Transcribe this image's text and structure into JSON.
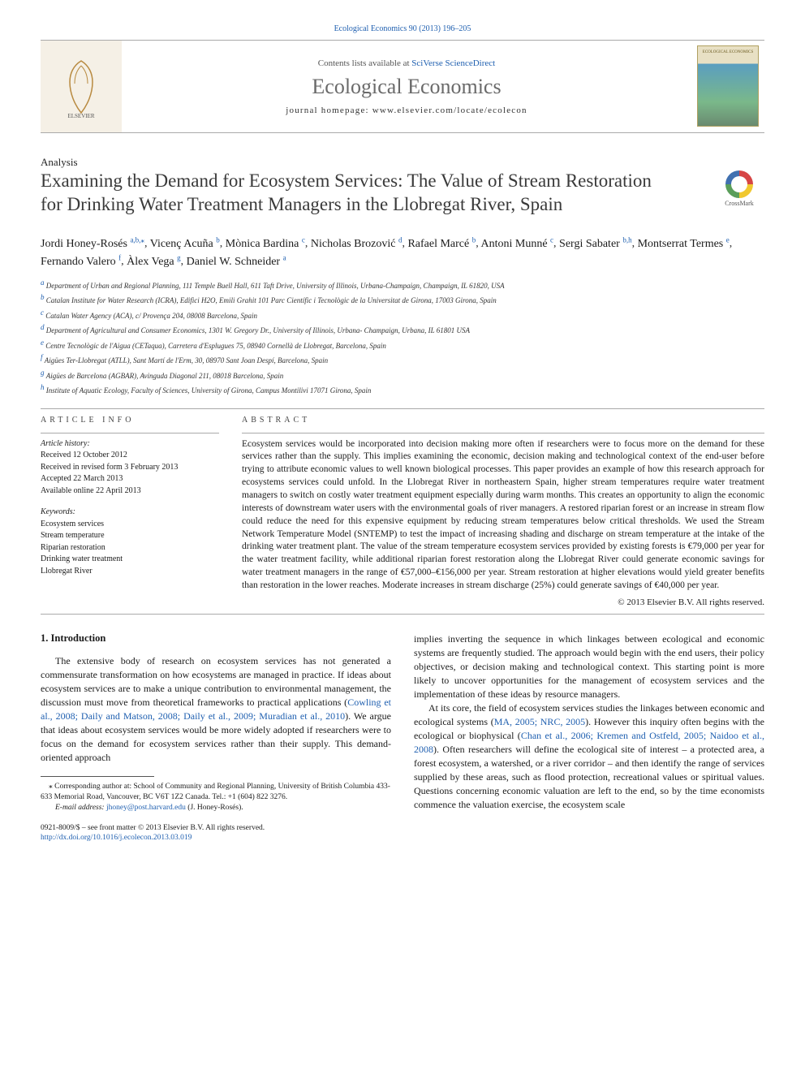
{
  "header": {
    "citation": "Ecological Economics 90 (2013) 196–205",
    "contents_line": "Contents lists available at ",
    "contents_link": "SciVerse ScienceDirect",
    "journal_title": "Ecological Economics",
    "homepage_line": "journal homepage: www.elsevier.com/locate/ecolecon"
  },
  "article_type": "Analysis",
  "crossmark_label": "CrossMark",
  "title": "Examining the Demand for Ecosystem Services: The Value of Stream Restoration for Drinking Water Treatment Managers in the Llobregat River, Spain",
  "authors": [
    {
      "name": "Jordi Honey-Rosés",
      "aff": "a,b,",
      "star": true
    },
    {
      "name": "Vicenç Acuña",
      "aff": "b"
    },
    {
      "name": "Mònica Bardina",
      "aff": "c"
    },
    {
      "name": "Nicholas Brozović",
      "aff": "d"
    },
    {
      "name": "Rafael Marcé",
      "aff": "b"
    },
    {
      "name": "Antoni Munné",
      "aff": "c"
    },
    {
      "name": "Sergi Sabater",
      "aff": "b,h"
    },
    {
      "name": "Montserrat Termes",
      "aff": "e"
    },
    {
      "name": "Fernando Valero",
      "aff": "f"
    },
    {
      "name": "Àlex Vega",
      "aff": "g"
    },
    {
      "name": "Daniel W. Schneider",
      "aff": "a"
    }
  ],
  "affiliations": [
    {
      "k": "a",
      "t": "Department of Urban and Regional Planning, 111 Temple Buell Hall, 611 Taft Drive, University of Illinois, Urbana-Champaign, Champaign, IL 61820, USA"
    },
    {
      "k": "b",
      "t": "Catalan Institute for Water Research (ICRA), Edifici H2O, Emili Grahit 101 Parc Científic i Tecnològic de la Universitat de Girona, 17003 Girona, Spain"
    },
    {
      "k": "c",
      "t": "Catalan Water Agency (ACA), c/ Provença 204, 08008 Barcelona, Spain"
    },
    {
      "k": "d",
      "t": "Department of Agricultural and Consumer Economics, 1301 W. Gregory Dr., University of Illinois, Urbana- Champaign, Urbana, IL 61801 USA"
    },
    {
      "k": "e",
      "t": "Centre Tecnològic de l'Aigua (CETaqua), Carretera d'Esplugues 75, 08940 Cornellà de Llobregat, Barcelona, Spain"
    },
    {
      "k": "f",
      "t": "Aigües Ter-Llobregat (ATLL), Sant Martí de l'Erm, 30, 08970 Sant Joan Despí, Barcelona, Spain"
    },
    {
      "k": "g",
      "t": "Aigües de Barcelona (AGBAR), Avinguda Diagonal 211, 08018 Barcelona, Spain"
    },
    {
      "k": "h",
      "t": "Institute of Aquatic Ecology, Faculty of Sciences, University of Girona, Campus Montilivi 17071 Girona, Spain"
    }
  ],
  "info": {
    "head": "article info",
    "hist_label": "Article history:",
    "received": "Received 12 October 2012",
    "revised": "Received in revised form 3 February 2013",
    "accepted": "Accepted 22 March 2013",
    "available": "Available online 22 April 2013",
    "kw_label": "Keywords:",
    "keywords": [
      "Ecosystem services",
      "Stream temperature",
      "Riparian restoration",
      "Drinking water treatment",
      "Llobregat River"
    ]
  },
  "abstract": {
    "head": "abstract",
    "text": "Ecosystem services would be incorporated into decision making more often if researchers were to focus more on the demand for these services rather than the supply. This implies examining the economic, decision making and technological context of the end-user before trying to attribute economic values to well known biological processes. This paper provides an example of how this research approach for ecosystems services could unfold. In the Llobregat River in northeastern Spain, higher stream temperatures require water treatment managers to switch on costly water treatment equipment especially during warm months. This creates an opportunity to align the economic interests of downstream water users with the environmental goals of river managers. A restored riparian forest or an increase in stream flow could reduce the need for this expensive equipment by reducing stream temperatures below critical thresholds. We used the Stream Network Temperature Model (SNTEMP) to test the impact of increasing shading and discharge on stream temperature at the intake of the drinking water treatment plant. The value of the stream temperature ecosystem services provided by existing forests is €79,000 per year for the water treatment facility, while additional riparian forest restoration along the Llobregat River could generate economic savings for water treatment managers in the range of €57,000–€156,000 per year. Stream restoration at higher elevations would yield greater benefits than restoration in the lower reaches. Moderate increases in stream discharge (25%) could generate savings of €40,000 per year.",
    "copyright": "© 2013 Elsevier B.V. All rights reserved."
  },
  "body": {
    "sec_title": "1. Introduction",
    "p1a": "The extensive body of research on ecosystem services has not generated a commensurate transformation on how ecosystems are managed in practice. If ideas about ecosystem services are to make a unique contribution to environmental management, the discussion must move from theoretical frameworks to practical applications (",
    "p1c": "Cowling et al., 2008; Daily and Matson, 2008; Daily et al., 2009; Muradian et al., 2010",
    "p1b": "). We argue that ideas about ecosystem services would be more widely adopted if researchers were to focus on the demand for ecosystem services rather than their supply. This demand-oriented approach",
    "p2": "implies inverting the sequence in which linkages between ecological and economic systems are frequently studied. The approach would begin with the end users, their policy objectives, or decision making and technological context. This starting point is more likely to uncover opportunities for the management of ecosystem services and the implementation of these ideas by resource managers.",
    "p3a": "At its core, the field of ecosystem services studies the linkages between economic and ecological systems (",
    "p3c1": "MA, 2005; NRC, 2005",
    "p3b": "). However this inquiry often begins with the ecological or biophysical (",
    "p3c2": "Chan et al., 2006; Kremen and Ostfeld, 2005; Naidoo et al., 2008",
    "p3c": "). Often researchers will define the ecological site of interest – a protected area, a forest ecosystem, a watershed, or a river corridor – and then identify the range of services supplied by these areas, such as flood protection, recreational values or spiritual values. Questions concerning economic valuation are left to the end, so by the time economists commence the valuation exercise, the ecosystem scale"
  },
  "footnotes": {
    "corr": "⁎ Corresponding author at: School of Community and Regional Planning, University of British Columbia 433-633 Memorial Road, Vancouver, BC V6T 1Z2 Canada. Tel.: +1 (604) 822 3276.",
    "email_label": "E-mail address:",
    "email": "jhoney@post.harvard.edu",
    "email_who": "(J. Honey-Rosés)."
  },
  "bottom": {
    "line1": "0921-8009/$ – see front matter © 2013 Elsevier B.V. All rights reserved.",
    "doi": "http://dx.doi.org/10.1016/j.ecolecon.2013.03.019"
  },
  "colors": {
    "link": "#2060b0",
    "text": "#1a1a1a",
    "muted": "#555555",
    "rule": "#aaaaaa",
    "elsevier_orange": "#e67a2e",
    "elsevier_bg": "#f5f0e6"
  }
}
